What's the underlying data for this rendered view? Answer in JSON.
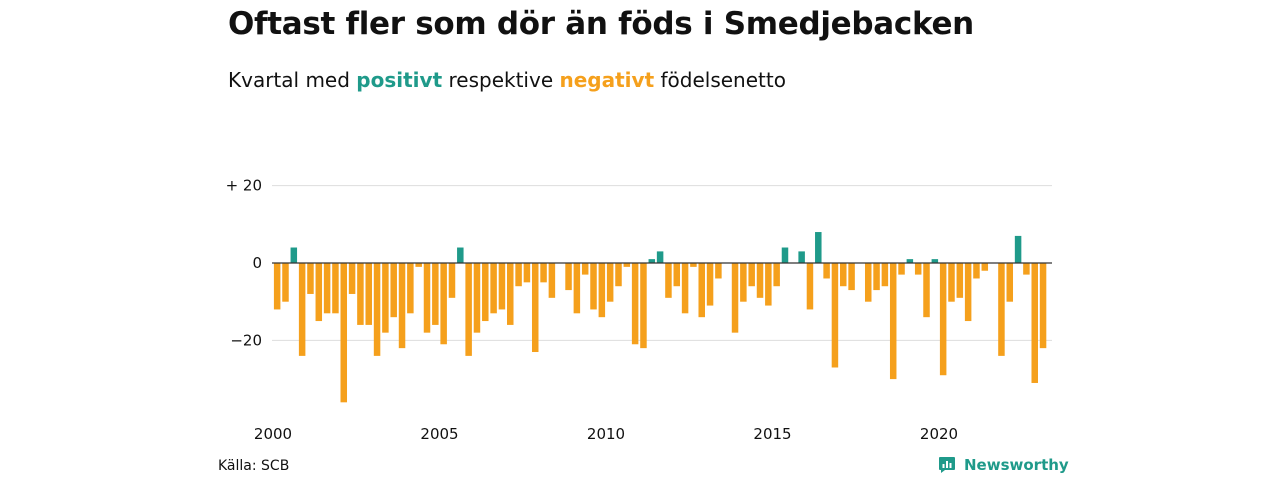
{
  "title": "Oftast fler som dör än föds i Smedjebacken",
  "subtitle": {
    "prefix": "Kvartal med",
    "positive": "positivt",
    "middle": "respektive",
    "negative": "negativt",
    "suffix": "födelsenetto"
  },
  "source": "Källa: SCB",
  "brand": {
    "name": "Newsworthy",
    "icon": "newsworthy-logo-icon"
  },
  "colors": {
    "positive": "#1f9a8a",
    "negative": "#f5a01c",
    "grid": "#dddddd",
    "zero_line": "#333333"
  },
  "chart_data": {
    "type": "bar",
    "title": "Oftast fler som dör än föds i Smedjebacken",
    "subtitle": "Kvartal med positivt respektive negativt födelsenetto",
    "xlabel": "",
    "ylabel": "",
    "ylim": [
      -37,
      25
    ],
    "grid": true,
    "y_ticks": [
      {
        "value": 20,
        "label": "+ 20"
      },
      {
        "value": 0,
        "label": "0"
      },
      {
        "value": -20,
        "label": "−20"
      }
    ],
    "x_ticks": [
      {
        "value": 2000,
        "label": "2000"
      },
      {
        "value": 2005,
        "label": "2005"
      },
      {
        "value": 2010,
        "label": "2010"
      },
      {
        "value": 2015,
        "label": "2015"
      },
      {
        "value": 2020,
        "label": "2020"
      }
    ],
    "start_year": 2000,
    "quarters_per_year": 4,
    "values": [
      -12,
      -10,
      4,
      -24,
      -8,
      -15,
      -13,
      -13,
      -36,
      -8,
      -16,
      -16,
      -24,
      -18,
      -14,
      -22,
      -13,
      -1,
      -18,
      -16,
      -21,
      -9,
      4,
      -24,
      -18,
      -15,
      -13,
      -12,
      -16,
      -6,
      -5,
      -23,
      -5,
      -9,
      0,
      -7,
      -13,
      -3,
      -12,
      -14,
      -10,
      -6,
      -1,
      -21,
      -22,
      1,
      3,
      -9,
      -6,
      -13,
      -1,
      -14,
      -11,
      -4,
      0,
      -18,
      -10,
      -6,
      -9,
      -11,
      -6,
      4,
      0,
      3,
      -12,
      8,
      -4,
      -27,
      -6,
      -7,
      0,
      -10,
      -7,
      -6,
      -30,
      -3,
      1,
      -3,
      -14,
      1,
      -29,
      -10,
      -9,
      -15,
      -4,
      -2,
      0,
      -24,
      -10,
      7,
      -3,
      -31,
      -22
    ]
  }
}
